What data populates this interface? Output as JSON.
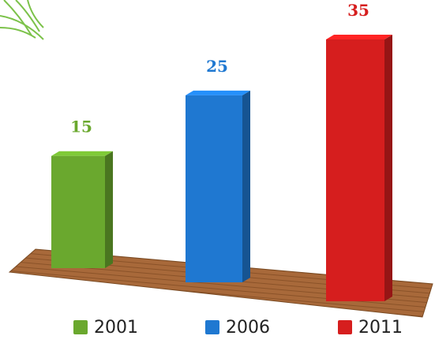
{
  "chart_data": {
    "type": "bar",
    "categories": [
      "2001",
      "2006",
      "2011"
    ],
    "values": [
      15,
      25,
      35
    ],
    "colors": [
      "#6aa82e",
      "#1f78d1",
      "#d61e1e"
    ]
  }
}
